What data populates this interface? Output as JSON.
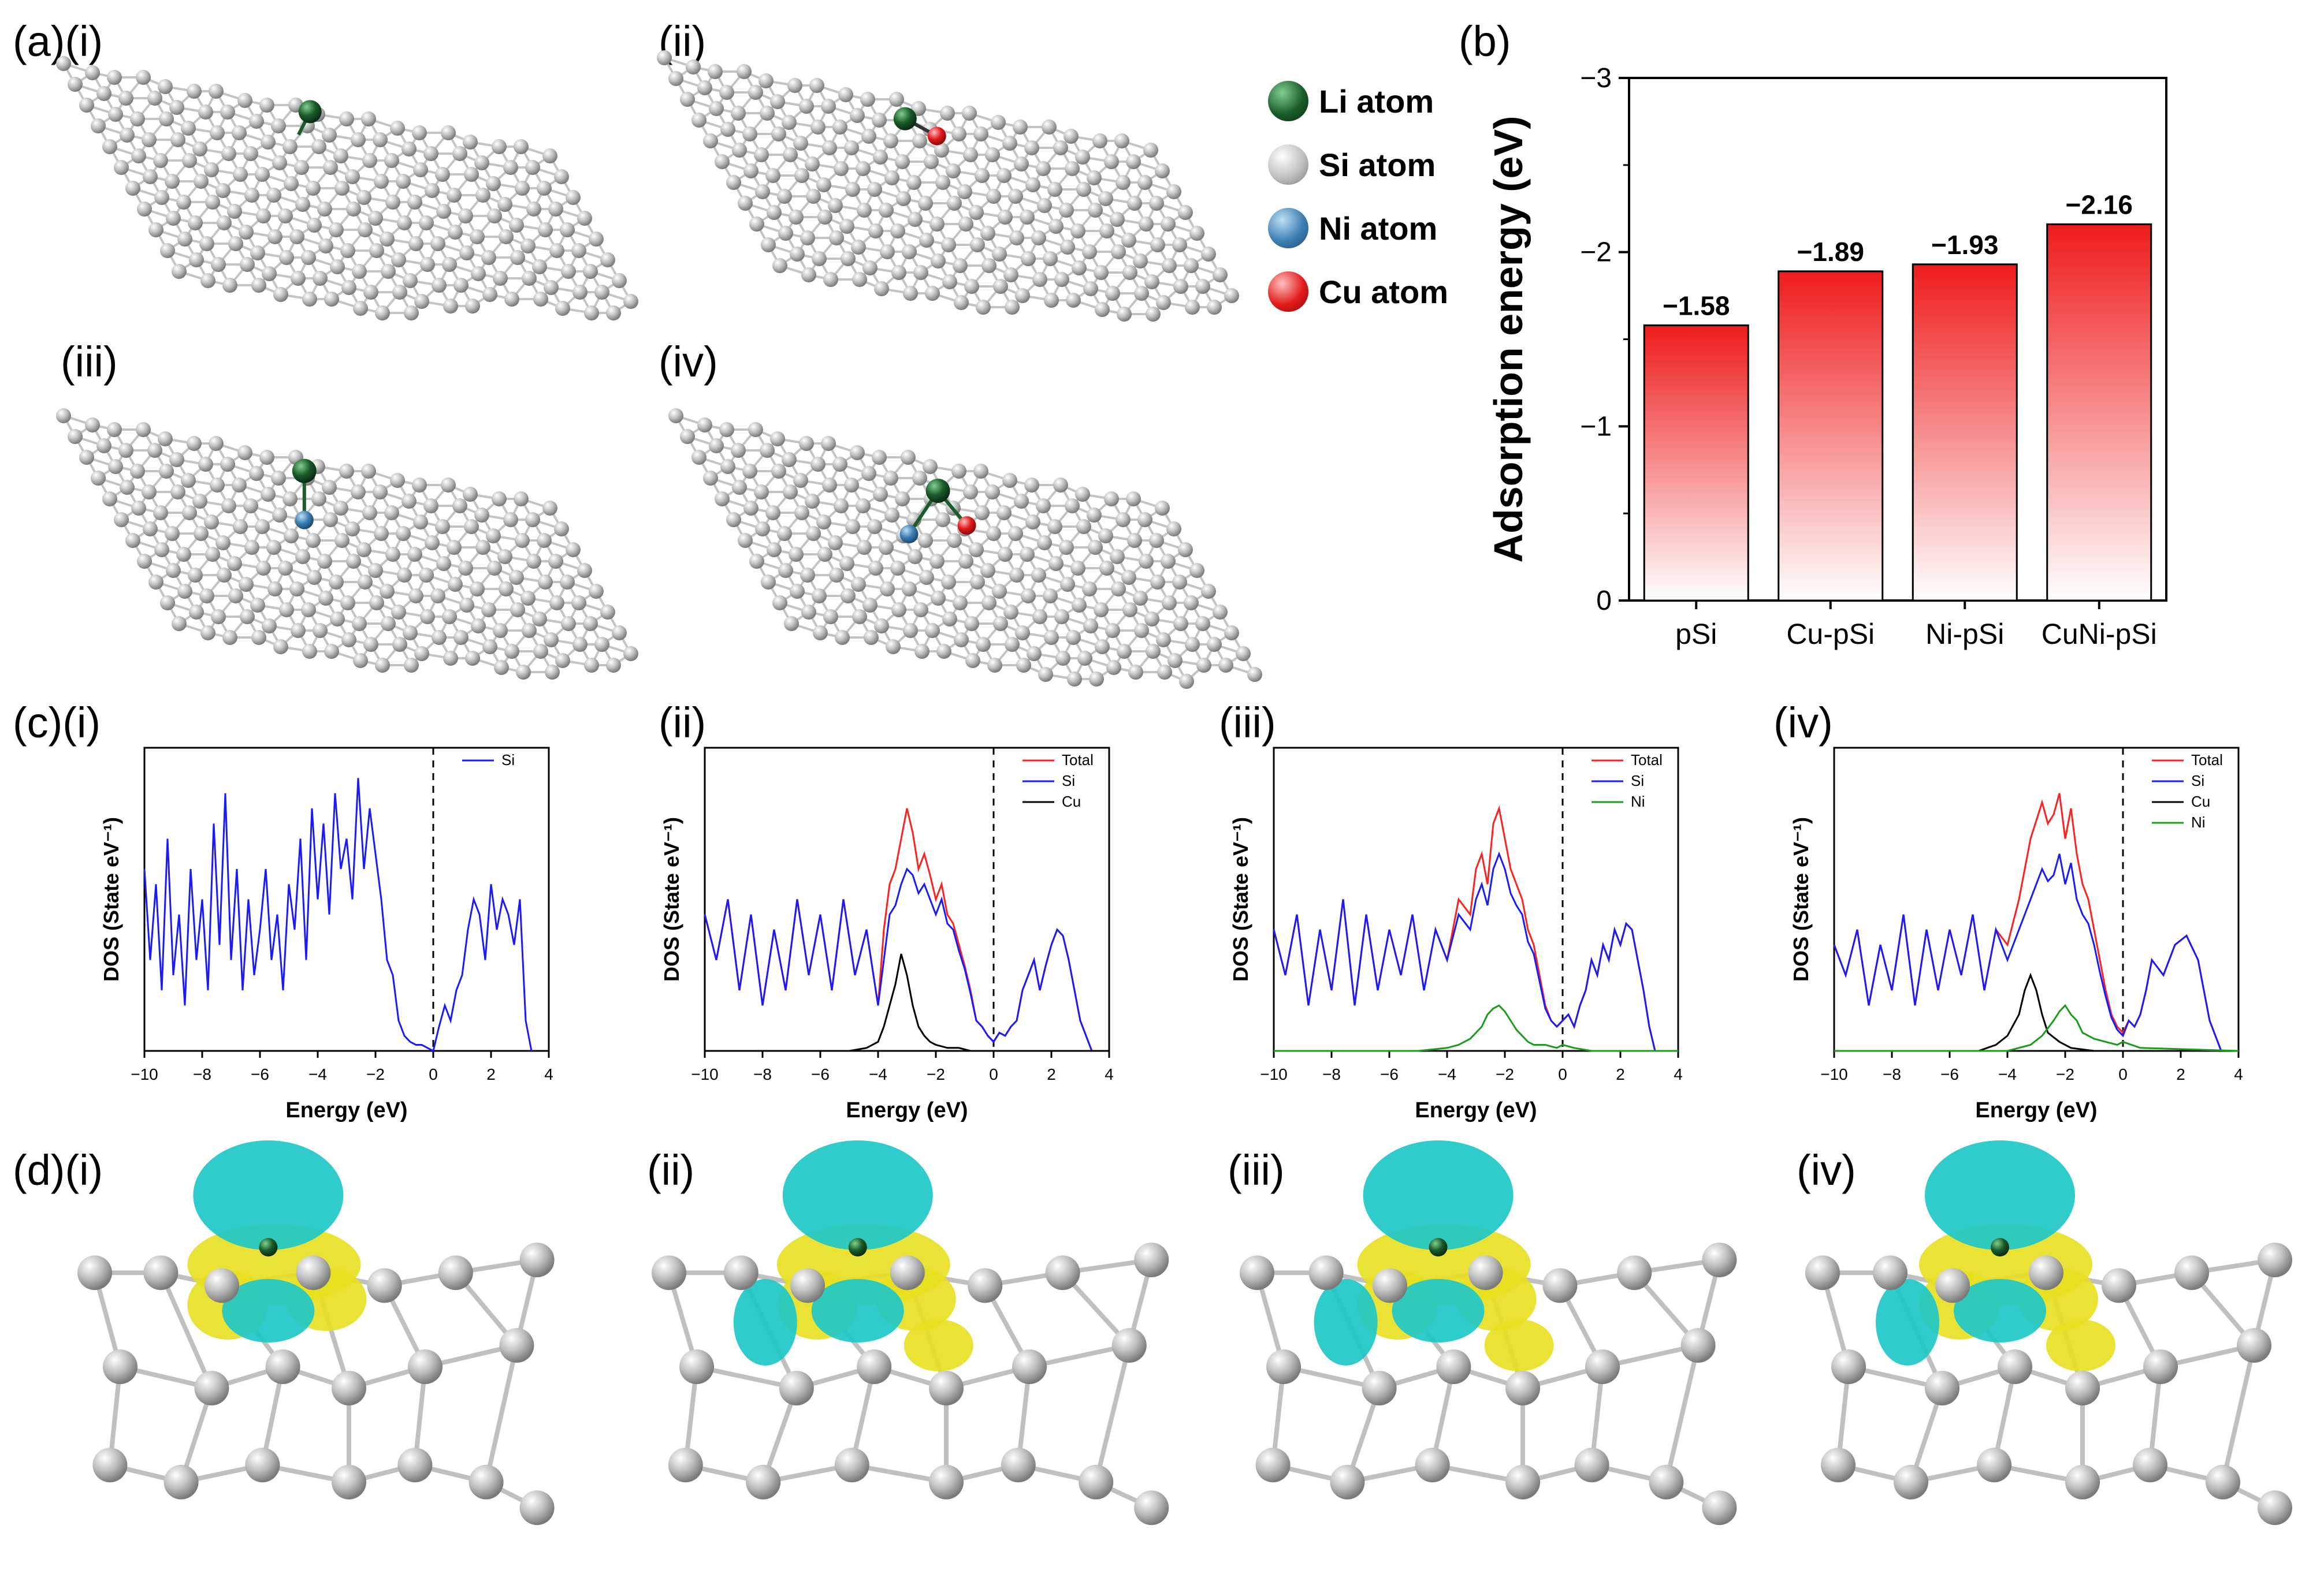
{
  "panels": {
    "a": "(a)",
    "b": "(b)",
    "c": "(c)",
    "d": "(d)",
    "roman": [
      "(i)",
      "(ii)",
      "(iii)",
      "(iv)"
    ]
  },
  "legend": [
    {
      "label": "Li atom",
      "color": "#1a5c2a"
    },
    {
      "label": "Si atom",
      "color": "#b8b8b8"
    },
    {
      "label": "Ni atom",
      "color": "#3d7fb3"
    },
    {
      "label": "Cu atom",
      "color": "#e31b1b"
    }
  ],
  "colors": {
    "total": "#ff2020",
    "si": "#1a1aff",
    "cu": "#000000",
    "ni": "#1a9c1a",
    "isosurface_cyan": "#1ec8c8",
    "isosurface_yellow": "#e8e020",
    "bar_red": "#ee1c1c"
  },
  "chart_data": [
    {
      "type": "bar",
      "panel": "(b)",
      "categories": [
        "pSi",
        "Cu-pSi",
        "Ni-pSi",
        "CuNi-pSi"
      ],
      "values": [
        -1.58,
        -1.89,
        -1.93,
        -2.16
      ],
      "value_labels": [
        "−1.58",
        "−1.89",
        "−1.93",
        "−2.16"
      ],
      "ylabel": "Adsorption energy (eV)",
      "ylim": [
        0,
        -3
      ],
      "yticks": [
        0,
        -1,
        -2,
        -3
      ],
      "ytick_labels": [
        "0",
        "−1",
        "−2",
        "−3"
      ]
    },
    {
      "type": "line",
      "panel": "(c)(i)",
      "xlabel": "Energy (eV)",
      "ylabel": "DOS (State eV⁻¹)",
      "xlim": [
        -10,
        4
      ],
      "xticks": [
        -10,
        -8,
        -6,
        -4,
        -2,
        0,
        2,
        4
      ],
      "xtick_labels": [
        "−10",
        "−8",
        "−6",
        "−4",
        "−2",
        "0",
        "2",
        "4"
      ],
      "series": [
        {
          "name": "Si",
          "x": [
            -10,
            -9.8,
            -9.6,
            -9.4,
            -9.2,
            -9.0,
            -8.8,
            -8.6,
            -8.4,
            -8.2,
            -8.0,
            -7.8,
            -7.6,
            -7.4,
            -7.2,
            -7.0,
            -6.8,
            -6.6,
            -6.4,
            -6.2,
            -6.0,
            -5.8,
            -5.6,
            -5.4,
            -5.2,
            -5.0,
            -4.8,
            -4.6,
            -4.4,
            -4.2,
            -4.0,
            -3.8,
            -3.6,
            -3.4,
            -3.2,
            -3.0,
            -2.8,
            -2.6,
            -2.4,
            -2.2,
            -2.0,
            -1.8,
            -1.6,
            -1.4,
            -1.2,
            -1.0,
            -0.8,
            -0.6,
            -0.4,
            -0.2,
            0.0,
            0.2,
            0.4,
            0.6,
            0.8,
            1.0,
            1.2,
            1.4,
            1.6,
            1.8,
            2.0,
            2.2,
            2.4,
            2.6,
            2.8,
            3.0,
            3.2,
            3.4
          ],
          "y": [
            0.6,
            0.3,
            0.55,
            0.2,
            0.7,
            0.25,
            0.45,
            0.15,
            0.6,
            0.3,
            0.5,
            0.2,
            0.75,
            0.35,
            0.85,
            0.3,
            0.6,
            0.2,
            0.5,
            0.25,
            0.4,
            0.6,
            0.3,
            0.45,
            0.2,
            0.55,
            0.4,
            0.7,
            0.3,
            0.8,
            0.5,
            0.75,
            0.45,
            0.85,
            0.6,
            0.7,
            0.5,
            0.9,
            0.6,
            0.8,
            0.65,
            0.5,
            0.3,
            0.25,
            0.1,
            0.05,
            0.03,
            0.02,
            0.02,
            0.01,
            0.0,
            0.08,
            0.15,
            0.1,
            0.2,
            0.25,
            0.4,
            0.5,
            0.45,
            0.3,
            0.55,
            0.4,
            0.5,
            0.45,
            0.35,
            0.5,
            0.1,
            0.0
          ]
        }
      ]
    },
    {
      "type": "line",
      "panel": "(c)(ii)",
      "xlabel": "Energy (eV)",
      "ylabel": "DOS (State eV⁻¹)",
      "xlim": [
        -10,
        4
      ],
      "xticks": [
        -10,
        -8,
        -6,
        -4,
        -2,
        0,
        2,
        4
      ],
      "xtick_labels": [
        "−10",
        "−8",
        "−6",
        "−4",
        "−2",
        "0",
        "2",
        "4"
      ],
      "series": [
        {
          "name": "Total",
          "x": [
            -10,
            -9.6,
            -9.2,
            -8.8,
            -8.4,
            -8.0,
            -7.6,
            -7.2,
            -6.8,
            -6.4,
            -6.0,
            -5.6,
            -5.2,
            -4.8,
            -4.4,
            -4.0,
            -3.8,
            -3.6,
            -3.4,
            -3.2,
            -3.0,
            -2.8,
            -2.6,
            -2.4,
            -2.2,
            -2.0,
            -1.8,
            -1.6,
            -1.4,
            -1.2,
            -1.0,
            -0.8,
            -0.6,
            -0.4,
            -0.2,
            0.0,
            0.2,
            0.4,
            0.6,
            0.8,
            1.0,
            1.2,
            1.4,
            1.6,
            1.8,
            2.0,
            2.2,
            2.4,
            2.6,
            2.8,
            3.0,
            3.2,
            3.4
          ],
          "y": [
            0.45,
            0.3,
            0.5,
            0.2,
            0.45,
            0.15,
            0.4,
            0.2,
            0.5,
            0.25,
            0.45,
            0.2,
            0.5,
            0.25,
            0.4,
            0.15,
            0.4,
            0.55,
            0.6,
            0.7,
            0.8,
            0.72,
            0.6,
            0.65,
            0.58,
            0.5,
            0.55,
            0.45,
            0.42,
            0.35,
            0.28,
            0.2,
            0.1,
            0.08,
            0.05,
            0.03,
            0.06,
            0.05,
            0.08,
            0.1,
            0.2,
            0.25,
            0.3,
            0.2,
            0.28,
            0.35,
            0.4,
            0.38,
            0.3,
            0.2,
            0.1,
            0.05,
            0.0
          ]
        },
        {
          "name": "Si",
          "x": [
            -10,
            -9.6,
            -9.2,
            -8.8,
            -8.4,
            -8.0,
            -7.6,
            -7.2,
            -6.8,
            -6.4,
            -6.0,
            -5.6,
            -5.2,
            -4.8,
            -4.4,
            -4.0,
            -3.8,
            -3.6,
            -3.4,
            -3.2,
            -3.0,
            -2.8,
            -2.6,
            -2.4,
            -2.2,
            -2.0,
            -1.8,
            -1.6,
            -1.4,
            -1.2,
            -1.0,
            -0.8,
            -0.6,
            -0.4,
            -0.2,
            0.0,
            0.2,
            0.4,
            0.6,
            0.8,
            1.0,
            1.2,
            1.4,
            1.6,
            1.8,
            2.0,
            2.2,
            2.4,
            2.6,
            2.8,
            3.0,
            3.2,
            3.4
          ],
          "y": [
            0.45,
            0.3,
            0.5,
            0.2,
            0.45,
            0.15,
            0.4,
            0.2,
            0.5,
            0.25,
            0.45,
            0.2,
            0.5,
            0.25,
            0.4,
            0.15,
            0.3,
            0.45,
            0.48,
            0.55,
            0.6,
            0.58,
            0.52,
            0.55,
            0.5,
            0.45,
            0.5,
            0.42,
            0.4,
            0.33,
            0.27,
            0.19,
            0.1,
            0.08,
            0.05,
            0.03,
            0.06,
            0.05,
            0.08,
            0.1,
            0.2,
            0.25,
            0.3,
            0.2,
            0.28,
            0.35,
            0.4,
            0.38,
            0.3,
            0.2,
            0.1,
            0.05,
            0.0
          ]
        },
        {
          "name": "Cu",
          "x": [
            -10,
            -5.0,
            -4.4,
            -4.0,
            -3.8,
            -3.6,
            -3.4,
            -3.2,
            -3.0,
            -2.8,
            -2.6,
            -2.4,
            -2.2,
            -2.0,
            -1.6,
            -1.2,
            -0.8,
            -0.4,
            0.0,
            4.0
          ],
          "y": [
            0.0,
            0.0,
            0.01,
            0.03,
            0.08,
            0.15,
            0.22,
            0.32,
            0.25,
            0.15,
            0.08,
            0.05,
            0.03,
            0.02,
            0.01,
            0.01,
            0.0,
            0.0,
            0.0,
            0.0
          ]
        }
      ]
    },
    {
      "type": "line",
      "panel": "(c)(iii)",
      "xlabel": "Energy (eV)",
      "ylabel": "DOS (State eV⁻¹)",
      "xlim": [
        -10,
        4
      ],
      "xticks": [
        -10,
        -8,
        -6,
        -4,
        -2,
        0,
        2,
        4
      ],
      "xtick_labels": [
        "−10",
        "−8",
        "−6",
        "−4",
        "−2",
        "0",
        "2",
        "4"
      ],
      "series": [
        {
          "name": "Total",
          "x": [
            -10,
            -9.6,
            -9.2,
            -8.8,
            -8.4,
            -8.0,
            -7.6,
            -7.2,
            -6.8,
            -6.4,
            -6.0,
            -5.6,
            -5.2,
            -4.8,
            -4.4,
            -4.0,
            -3.6,
            -3.2,
            -3.0,
            -2.8,
            -2.6,
            -2.4,
            -2.2,
            -2.0,
            -1.8,
            -1.6,
            -1.4,
            -1.2,
            -1.0,
            -0.8,
            -0.6,
            -0.4,
            -0.2,
            0.0,
            0.2,
            0.4,
            0.6,
            0.8,
            1.0,
            1.2,
            1.4,
            1.6,
            1.8,
            2.0,
            2.2,
            2.4,
            2.6,
            2.8,
            3.0,
            3.2
          ],
          "y": [
            0.4,
            0.25,
            0.45,
            0.15,
            0.4,
            0.2,
            0.5,
            0.15,
            0.45,
            0.2,
            0.4,
            0.25,
            0.45,
            0.2,
            0.4,
            0.3,
            0.5,
            0.45,
            0.6,
            0.65,
            0.55,
            0.75,
            0.8,
            0.7,
            0.6,
            0.55,
            0.5,
            0.4,
            0.35,
            0.25,
            0.15,
            0.1,
            0.08,
            0.1,
            0.12,
            0.08,
            0.15,
            0.2,
            0.3,
            0.25,
            0.35,
            0.3,
            0.4,
            0.35,
            0.42,
            0.4,
            0.3,
            0.2,
            0.08,
            0.0
          ]
        },
        {
          "name": "Si",
          "x": [
            -10,
            -9.6,
            -9.2,
            -8.8,
            -8.4,
            -8.0,
            -7.6,
            -7.2,
            -6.8,
            -6.4,
            -6.0,
            -5.6,
            -5.2,
            -4.8,
            -4.4,
            -4.0,
            -3.6,
            -3.2,
            -3.0,
            -2.8,
            -2.6,
            -2.4,
            -2.2,
            -2.0,
            -1.8,
            -1.6,
            -1.4,
            -1.2,
            -1.0,
            -0.8,
            -0.6,
            -0.4,
            -0.2,
            0.0,
            0.2,
            0.4,
            0.6,
            0.8,
            1.0,
            1.2,
            1.4,
            1.6,
            1.8,
            2.0,
            2.2,
            2.4,
            2.6,
            2.8,
            3.0,
            3.2
          ],
          "y": [
            0.4,
            0.25,
            0.45,
            0.15,
            0.4,
            0.2,
            0.5,
            0.15,
            0.45,
            0.2,
            0.4,
            0.25,
            0.45,
            0.2,
            0.4,
            0.3,
            0.45,
            0.4,
            0.5,
            0.55,
            0.48,
            0.6,
            0.65,
            0.6,
            0.52,
            0.48,
            0.45,
            0.36,
            0.32,
            0.23,
            0.14,
            0.1,
            0.08,
            0.1,
            0.12,
            0.08,
            0.15,
            0.2,
            0.3,
            0.25,
            0.35,
            0.3,
            0.4,
            0.35,
            0.42,
            0.4,
            0.3,
            0.2,
            0.08,
            0.0
          ]
        },
        {
          "name": "Ni",
          "x": [
            -10,
            -5.0,
            -4.0,
            -3.6,
            -3.2,
            -2.8,
            -2.6,
            -2.4,
            -2.2,
            -2.0,
            -1.8,
            -1.6,
            -1.4,
            -1.2,
            -1.0,
            -0.6,
            -0.2,
            0.0,
            0.4,
            1.0,
            4.0
          ],
          "y": [
            0.0,
            0.0,
            0.01,
            0.02,
            0.04,
            0.08,
            0.12,
            0.14,
            0.15,
            0.13,
            0.1,
            0.07,
            0.05,
            0.03,
            0.02,
            0.02,
            0.01,
            0.02,
            0.01,
            0.0,
            0.0
          ]
        }
      ]
    },
    {
      "type": "line",
      "panel": "(c)(iv)",
      "xlabel": "Energy (eV)",
      "ylabel": "DOS (State eV⁻¹)",
      "xlim": [
        -10,
        4
      ],
      "xticks": [
        -10,
        -8,
        -6,
        -4,
        -2,
        0,
        2,
        4
      ],
      "xtick_labels": [
        "−10",
        "−8",
        "−6",
        "−4",
        "−2",
        "0",
        "2",
        "4"
      ],
      "series": [
        {
          "name": "Total",
          "x": [
            -10,
            -9.6,
            -9.2,
            -8.8,
            -8.4,
            -8.0,
            -7.6,
            -7.2,
            -6.8,
            -6.4,
            -6.0,
            -5.6,
            -5.2,
            -4.8,
            -4.4,
            -4.0,
            -3.6,
            -3.2,
            -2.8,
            -2.6,
            -2.4,
            -2.2,
            -2.0,
            -1.8,
            -1.6,
            -1.4,
            -1.2,
            -1.0,
            -0.8,
            -0.6,
            -0.4,
            -0.2,
            0.0,
            0.2,
            0.4,
            0.6,
            0.8,
            1.0,
            1.4,
            1.8,
            2.2,
            2.6,
            3.0,
            3.4
          ],
          "y": [
            0.35,
            0.25,
            0.4,
            0.15,
            0.35,
            0.2,
            0.45,
            0.15,
            0.4,
            0.2,
            0.4,
            0.25,
            0.45,
            0.2,
            0.4,
            0.35,
            0.5,
            0.7,
            0.82,
            0.75,
            0.78,
            0.85,
            0.7,
            0.8,
            0.65,
            0.55,
            0.5,
            0.4,
            0.3,
            0.2,
            0.12,
            0.08,
            0.06,
            0.1,
            0.08,
            0.12,
            0.2,
            0.3,
            0.25,
            0.35,
            0.38,
            0.3,
            0.1,
            0.0
          ]
        },
        {
          "name": "Si",
          "x": [
            -10,
            -9.6,
            -9.2,
            -8.8,
            -8.4,
            -8.0,
            -7.6,
            -7.2,
            -6.8,
            -6.4,
            -6.0,
            -5.6,
            -5.2,
            -4.8,
            -4.4,
            -4.0,
            -3.6,
            -3.2,
            -2.8,
            -2.6,
            -2.4,
            -2.2,
            -2.0,
            -1.8,
            -1.6,
            -1.4,
            -1.2,
            -1.0,
            -0.8,
            -0.6,
            -0.4,
            -0.2,
            0.0,
            0.2,
            0.4,
            0.6,
            0.8,
            1.0,
            1.4,
            1.8,
            2.2,
            2.6,
            3.0,
            3.4
          ],
          "y": [
            0.35,
            0.25,
            0.4,
            0.15,
            0.35,
            0.2,
            0.45,
            0.15,
            0.4,
            0.2,
            0.4,
            0.25,
            0.45,
            0.2,
            0.4,
            0.3,
            0.4,
            0.5,
            0.6,
            0.56,
            0.58,
            0.65,
            0.55,
            0.62,
            0.5,
            0.45,
            0.42,
            0.35,
            0.26,
            0.18,
            0.11,
            0.07,
            0.05,
            0.1,
            0.08,
            0.12,
            0.2,
            0.3,
            0.25,
            0.35,
            0.38,
            0.3,
            0.1,
            0.0
          ]
        },
        {
          "name": "Cu",
          "x": [
            -10,
            -5.0,
            -4.4,
            -4.0,
            -3.6,
            -3.4,
            -3.2,
            -3.0,
            -2.8,
            -2.6,
            -2.2,
            -1.8,
            -1.0,
            0.0,
            4.0
          ],
          "y": [
            0.0,
            0.0,
            0.02,
            0.05,
            0.12,
            0.2,
            0.25,
            0.2,
            0.12,
            0.06,
            0.03,
            0.01,
            0.0,
            0.0,
            0.0
          ]
        },
        {
          "name": "Ni",
          "x": [
            -10,
            -4.0,
            -3.2,
            -2.8,
            -2.4,
            -2.2,
            -2.0,
            -1.8,
            -1.6,
            -1.4,
            -1.0,
            -0.6,
            -0.2,
            0.0,
            0.6,
            4.0
          ],
          "y": [
            0.0,
            0.0,
            0.02,
            0.05,
            0.1,
            0.13,
            0.15,
            0.12,
            0.1,
            0.06,
            0.04,
            0.03,
            0.02,
            0.03,
            0.01,
            0.0
          ]
        }
      ]
    }
  ]
}
